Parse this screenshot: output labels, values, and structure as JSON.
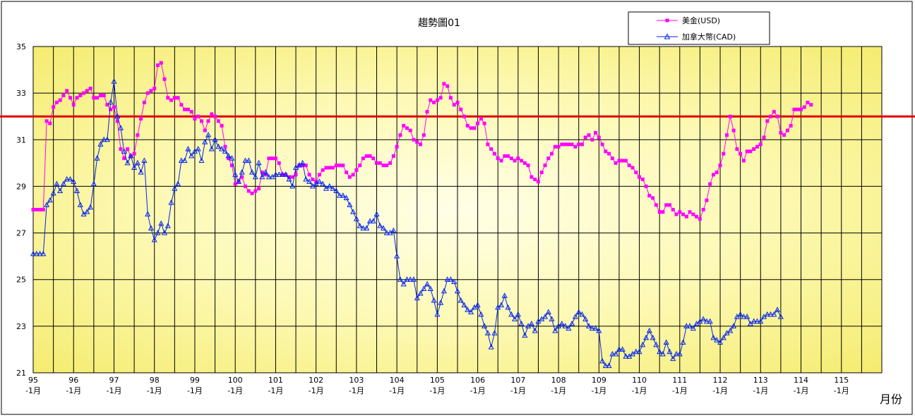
{
  "chart_data": {
    "type": "line",
    "title": "趨勢圖01",
    "xlabel": "月份",
    "ylabel": "",
    "ylim": [
      21,
      35
    ],
    "y_ticks": [
      21,
      23,
      25,
      27,
      29,
      31,
      33,
      35
    ],
    "x_range": [
      95,
      116
    ],
    "x_ticks": [
      {
        "year": "95",
        "month": "-1月"
      },
      {
        "year": "96",
        "month": "-1月"
      },
      {
        "year": "97",
        "month": "-1月"
      },
      {
        "year": "98",
        "month": "-1月"
      },
      {
        "year": "99",
        "month": "-1月"
      },
      {
        "year": "100",
        "month": "-1月"
      },
      {
        "year": "101",
        "month": "-1月"
      },
      {
        "year": "102",
        "month": "-1月"
      },
      {
        "year": "103",
        "month": "-1月"
      },
      {
        "year": "104",
        "month": "-1月"
      },
      {
        "year": "105",
        "month": "-1月"
      },
      {
        "year": "106",
        "month": "-1月"
      },
      {
        "year": "107",
        "month": "-1月"
      },
      {
        "year": "108",
        "month": "-1月"
      },
      {
        "year": "109",
        "month": "-1月"
      },
      {
        "year": "110",
        "month": "-1月"
      },
      {
        "year": "111",
        "month": "-1月"
      },
      {
        "year": "112",
        "month": "-1月"
      },
      {
        "year": "113",
        "month": "-1月"
      },
      {
        "year": "114",
        "month": "-1月"
      },
      {
        "year": "115",
        "month": "-1月"
      }
    ],
    "grid": true,
    "legend_position": "top-right",
    "reference_line": {
      "y": 32,
      "color": "#e00000"
    },
    "colors": {
      "usd": "#ff00ff",
      "cad": "#0022ee",
      "plot_bg_light": "#ffffe0",
      "plot_bg_dark": "#f6f080"
    },
    "series": [
      {
        "name": "美金(USD)",
        "marker": "square",
        "x_start": 95,
        "step": 0.08333,
        "values": [
          28.0,
          28.0,
          28.0,
          28.0,
          31.8,
          31.7,
          32.4,
          32.6,
          32.7,
          32.9,
          33.1,
          32.8,
          32.5,
          32.8,
          32.9,
          33.0,
          33.1,
          33.2,
          32.8,
          32.8,
          32.9,
          32.9,
          32.5,
          32.3,
          32.4,
          31.8,
          30.6,
          30.2,
          30.6,
          30.3,
          30.4,
          31.2,
          31.9,
          32.6,
          33.0,
          33.1,
          33.2,
          34.2,
          34.3,
          33.6,
          32.8,
          32.7,
          32.8,
          32.8,
          32.5,
          32.3,
          32.3,
          32.2,
          31.9,
          32.0,
          31.8,
          31.4,
          31.8,
          32.1,
          32.0,
          31.8,
          31.6,
          30.7,
          30.2,
          29.9,
          29.1,
          29.2,
          29.4,
          29.0,
          28.8,
          28.7,
          28.8,
          28.9,
          29.6,
          29.5,
          30.2,
          30.2,
          30.2,
          30.0,
          29.5,
          29.5,
          29.4,
          29.4,
          29.5,
          29.9,
          29.9,
          29.9,
          29.5,
          29.3,
          29.2,
          29.5,
          29.7,
          29.8,
          29.8,
          29.8,
          29.9,
          29.9,
          29.9,
          29.6,
          29.4,
          29.5,
          29.7,
          29.9,
          30.2,
          30.3,
          30.3,
          30.2,
          30.0,
          30.0,
          29.9,
          29.9,
          30.0,
          30.3,
          30.7,
          31.2,
          31.6,
          31.5,
          31.4,
          31.0,
          30.9,
          30.8,
          31.2,
          32.2,
          32.7,
          32.6,
          32.7,
          32.8,
          33.4,
          33.3,
          32.8,
          32.5,
          32.6,
          32.3,
          32.0,
          31.6,
          31.5,
          31.5,
          31.7,
          31.9,
          31.7,
          30.8,
          30.6,
          30.4,
          30.2,
          30.1,
          30.3,
          30.3,
          30.2,
          30.1,
          30.2,
          30.1,
          30.0,
          29.9,
          29.4,
          29.3,
          29.2,
          29.6,
          29.9,
          30.2,
          30.4,
          30.7,
          30.7,
          30.8,
          30.8,
          30.8,
          30.8,
          30.7,
          30.8,
          30.8,
          31.1,
          31.2,
          31.0,
          31.3,
          31.1,
          30.8,
          30.5,
          30.4,
          30.2,
          30.0,
          30.1,
          30.1,
          30.1,
          29.9,
          29.8,
          29.6,
          29.4,
          29.3,
          29.0,
          28.6,
          28.5,
          28.2,
          27.9,
          27.9,
          28.2,
          28.2,
          28.0,
          27.8,
          27.9,
          27.8,
          27.7,
          27.9,
          27.8,
          27.7,
          27.6,
          28.0,
          28.4,
          29.1,
          29.5,
          29.6,
          29.9,
          30.4,
          31.2,
          32.0,
          31.4,
          30.6,
          30.4,
          30.1,
          30.5,
          30.5,
          30.6,
          30.7,
          30.8,
          31.1,
          31.8,
          32.0,
          32.2,
          32.0,
          31.3,
          31.2,
          31.4,
          31.6,
          32.3,
          32.3,
          32.3,
          32.4,
          32.6,
          32.5
        ]
      },
      {
        "name": "加拿大幣(CAD)",
        "marker": "triangle",
        "x_start": 95,
        "step": 0.08333,
        "values": [
          26.1,
          26.1,
          26.1,
          26.1,
          28.2,
          28.4,
          28.7,
          29.1,
          28.8,
          29.1,
          29.3,
          29.3,
          29.2,
          28.8,
          28.2,
          27.8,
          27.9,
          28.1,
          29.1,
          30.2,
          30.8,
          31.0,
          31.0,
          32.6,
          33.5,
          32.0,
          31.5,
          30.5,
          30.0,
          30.3,
          29.8,
          30.0,
          29.6,
          30.1,
          27.8,
          27.2,
          26.7,
          27.0,
          27.4,
          27.0,
          27.3,
          28.3,
          28.9,
          29.1,
          30.1,
          30.1,
          30.6,
          30.3,
          30.5,
          30.6,
          30.1,
          30.9,
          31.2,
          30.6,
          31.0,
          30.7,
          30.6,
          30.5,
          30.3,
          30.2,
          29.5,
          29.2,
          29.6,
          30.1,
          30.1,
          29.6,
          29.4,
          30.0,
          29.4,
          29.6,
          29.4,
          29.4,
          29.5,
          29.5,
          29.5,
          29.5,
          29.3,
          29.0,
          29.8,
          29.9,
          30.0,
          29.3,
          29.2,
          29.0,
          29.1,
          29.2,
          29.1,
          28.9,
          29.0,
          28.9,
          28.8,
          28.6,
          28.6,
          28.5,
          28.2,
          27.9,
          27.6,
          27.3,
          27.2,
          27.2,
          27.5,
          27.5,
          27.8,
          27.3,
          27.2,
          27.0,
          27.0,
          27.1,
          26.0,
          25.0,
          24.8,
          25.0,
          25.0,
          25.0,
          24.2,
          24.4,
          24.6,
          24.8,
          24.6,
          24.1,
          23.5,
          24.0,
          24.5,
          25.0,
          25.0,
          24.9,
          24.5,
          24.1,
          23.9,
          23.7,
          23.6,
          23.8,
          23.9,
          23.5,
          23.0,
          22.7,
          22.1,
          22.7,
          23.8,
          23.9,
          24.3,
          23.8,
          23.5,
          23.3,
          23.5,
          23.1,
          22.6,
          23.0,
          23.1,
          22.8,
          23.2,
          23.3,
          23.4,
          23.6,
          23.3,
          22.8,
          23.0,
          23.1,
          23.0,
          22.9,
          23.1,
          23.4,
          23.6,
          23.5,
          23.3,
          23.0,
          22.9,
          22.9,
          22.8,
          21.5,
          21.3,
          21.3,
          21.8,
          21.8,
          22.0,
          22.0,
          21.7,
          21.7,
          21.8,
          21.9,
          21.9,
          22.2,
          22.5,
          22.8,
          22.5,
          22.2,
          21.9,
          21.8,
          22.3,
          21.9,
          21.6,
          21.8,
          21.8,
          22.3,
          23.0,
          23.0,
          22.9,
          23.1,
          23.2,
          23.3,
          23.2,
          23.2,
          22.5,
          22.4,
          22.3,
          22.5,
          22.7,
          22.8,
          23.0,
          23.4,
          23.5,
          23.4,
          23.4,
          23.1,
          23.2,
          23.2,
          23.2,
          23.4,
          23.5,
          23.5,
          23.5,
          23.7,
          23.4
        ]
      }
    ]
  }
}
